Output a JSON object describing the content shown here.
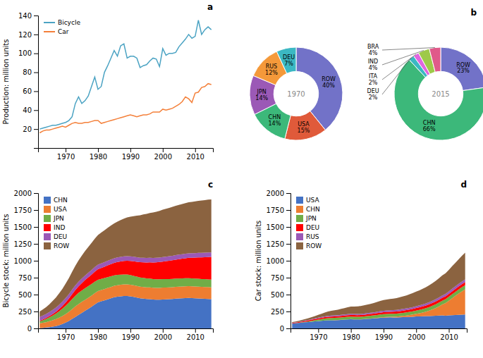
{
  "chart_data": [
    {
      "type": "line",
      "title": "a",
      "y_label": "Production: million units",
      "x": [
        1962,
        1963,
        1964,
        1965,
        1966,
        1967,
        1968,
        1969,
        1970,
        1971,
        1972,
        1973,
        1974,
        1975,
        1976,
        1977,
        1978,
        1979,
        1980,
        1981,
        1982,
        1983,
        1984,
        1985,
        1986,
        1987,
        1988,
        1989,
        1990,
        1991,
        1992,
        1993,
        1994,
        1995,
        1996,
        1997,
        1998,
        1999,
        2000,
        2001,
        2002,
        2003,
        2004,
        2005,
        2006,
        2007,
        2008,
        2009,
        2010,
        2011,
        2012,
        2013,
        2014,
        2015
      ],
      "series": [
        {
          "name": "Bicycle",
          "color": "#4BA3C3",
          "values": [
            20,
            21,
            22,
            23,
            24,
            24,
            25,
            26,
            27,
            29,
            33,
            47,
            54,
            47,
            50,
            55,
            65,
            75,
            62,
            65,
            80,
            87,
            95,
            103,
            97,
            108,
            110,
            95,
            97,
            97,
            95,
            85,
            87,
            88,
            92,
            95,
            94,
            86,
            105,
            98,
            100,
            100,
            101,
            107,
            111,
            115,
            120,
            116,
            118,
            135,
            120,
            125,
            128,
            125
          ]
        },
        {
          "name": "Car",
          "color": "#F4803A",
          "values": [
            16,
            18,
            19,
            19,
            20,
            21,
            22,
            23,
            22,
            24,
            26,
            27,
            26,
            26,
            27,
            27,
            28,
            29,
            29,
            26,
            27,
            28,
            29,
            30,
            31,
            32,
            33,
            34,
            35,
            34,
            33,
            34,
            35,
            35,
            36,
            38,
            38,
            38,
            41,
            40,
            41,
            42,
            44,
            46,
            49,
            54,
            52,
            48,
            58,
            59,
            64,
            65,
            68,
            67
          ]
        }
      ],
      "xlim": [
        1961.5,
        2015.5
      ],
      "xticks": [
        1970,
        1980,
        1990,
        2000,
        2010
      ],
      "ylim": [
        0,
        140
      ],
      "yticks": [
        20,
        40,
        60,
        80,
        100,
        120,
        140
      ],
      "legend": "upper left"
    },
    {
      "type": "pie",
      "title": "b",
      "data_labels": true,
      "series": [
        {
          "name": "1970",
          "values": [
            40,
            15,
            14,
            14,
            12,
            7
          ],
          "colors": [
            "#7272C8",
            "#E05A3A",
            "#3CB87A",
            "#9B59B6",
            "#F4993A",
            "#3BB8C3"
          ],
          "value_labels": [
            "ROW\n40%",
            "USA\n15%",
            "CHN\n14%",
            "JPN\n14%",
            "RUS\n12%",
            "DEU\n7%"
          ]
        },
        {
          "name": "2015",
          "values": [
            23,
            66,
            2,
            2,
            4,
            4
          ],
          "colors": [
            "#7272C8",
            "#3CB87A",
            "#3BB8C3",
            "#E066E0",
            "#9EC94A",
            "#E05A8A"
          ],
          "value_labels": [
            "ROW\n23%",
            "CHN\n66%",
            "DEU\n2%",
            "ITA\n2%",
            "IND\n4%",
            "BRA\n4%"
          ]
        }
      ]
    },
    {
      "type": "area",
      "stacked": true,
      "title": "c",
      "y_label": "Bicycle stock: million units",
      "x": [
        1962,
        1963,
        1964,
        1965,
        1966,
        1967,
        1968,
        1969,
        1970,
        1971,
        1972,
        1973,
        1974,
        1975,
        1976,
        1977,
        1978,
        1979,
        1980,
        1981,
        1982,
        1983,
        1984,
        1985,
        1986,
        1987,
        1988,
        1989,
        1990,
        1991,
        1992,
        1993,
        1994,
        1995,
        1996,
        1997,
        1998,
        1999,
        2000,
        2001,
        2002,
        2003,
        2004,
        2005,
        2006,
        2007,
        2008,
        2009,
        2010,
        2011,
        2012,
        2013,
        2014,
        2015
      ],
      "series": [
        {
          "name": "CHN",
          "color": "#4472C4",
          "values": [
            5,
            8,
            12,
            18,
            25,
            35,
            48,
            65,
            85,
            110,
            140,
            170,
            200,
            230,
            260,
            290,
            320,
            355,
            385,
            400,
            415,
            430,
            445,
            460,
            470,
            475,
            480,
            480,
            475,
            465,
            455,
            445,
            440,
            435,
            432,
            428,
            425,
            425,
            428,
            430,
            432,
            435,
            440,
            443,
            446,
            448,
            450,
            448,
            445,
            443,
            440,
            438,
            436,
            433
          ]
        },
        {
          "name": "USA",
          "color": "#ED7D31",
          "values": [
            70,
            75,
            80,
            88,
            95,
            102,
            110,
            118,
            127,
            135,
            145,
            155,
            160,
            162,
            163,
            164,
            165,
            166,
            167,
            167,
            167,
            168,
            168,
            169,
            169,
            170,
            170,
            171,
            171,
            172,
            172,
            172,
            173,
            173,
            174,
            174,
            174,
            175,
            175,
            175,
            175,
            175,
            175,
            175,
            175,
            175,
            175,
            175,
            175,
            175,
            175,
            175,
            175,
            175
          ]
        },
        {
          "name": "JPN",
          "color": "#70AD47",
          "values": [
            30,
            38,
            48,
            58,
            70,
            82,
            95,
            108,
            122,
            135,
            148,
            158,
            165,
            168,
            170,
            170,
            170,
            170,
            168,
            165,
            162,
            160,
            158,
            155,
            153,
            150,
            148,
            145,
            142,
            140,
            138,
            136,
            134,
            132,
            130,
            128,
            127,
            126,
            125,
            124,
            123,
            122,
            121,
            120,
            119,
            118,
            118,
            117,
            116,
            116,
            115,
            115,
            114,
            113
          ]
        },
        {
          "name": "IND",
          "color": "#FF0000",
          "values": [
            10,
            12,
            15,
            18,
            22,
            27,
            33,
            40,
            50,
            60,
            72,
            85,
            98,
            110,
            122,
            132,
            140,
            148,
            155,
            162,
            168,
            174,
            180,
            185,
            190,
            195,
            200,
            205,
            210,
            215,
            220,
            225,
            230,
            235,
            240,
            245,
            250,
            255,
            260,
            265,
            270,
            275,
            280,
            285,
            290,
            295,
            300,
            305,
            310,
            315,
            320,
            325,
            330,
            335
          ]
        },
        {
          "name": "DEU",
          "color": "#9B59B6",
          "values": [
            55,
            57,
            58,
            60,
            61,
            62,
            63,
            64,
            65,
            66,
            67,
            67,
            67,
            67,
            67,
            67,
            67,
            67,
            67,
            67,
            67,
            67,
            67,
            67,
            67,
            67,
            67,
            67,
            67,
            67,
            67,
            67,
            67,
            67,
            67,
            67,
            67,
            67,
            67,
            67,
            67,
            67,
            67,
            67,
            67,
            67,
            67,
            67,
            67,
            67,
            67,
            67,
            67,
            67
          ]
        },
        {
          "name": "ROW",
          "color": "#8B6340",
          "values": [
            80,
            90,
            102,
            116,
            132,
            149,
            168,
            189,
            212,
            237,
            264,
            290,
            315,
            338,
            360,
            380,
            400,
            420,
            438,
            456,
            472,
            488,
            502,
            516,
            530,
            544,
            558,
            572,
            586,
            600,
            614,
            628,
            640,
            652,
            663,
            672,
            681,
            690,
            699,
            707,
            715,
            722,
            729,
            736,
            742,
            748,
            754,
            759,
            764,
            769,
            773,
            777,
            781,
            784
          ]
        }
      ],
      "xlim": [
        1961.5,
        2015.5
      ],
      "xticks": [
        1970,
        1980,
        1990,
        2000,
        2010
      ],
      "ylim": [
        0,
        2000
      ],
      "yticks": [
        0,
        250,
        500,
        750,
        1000,
        1250,
        1500,
        1750,
        2000
      ],
      "legend": "upper left"
    },
    {
      "type": "area",
      "stacked": true,
      "title": "d",
      "y_label": "Car stock: million units",
      "x": [
        1962,
        1963,
        1964,
        1965,
        1966,
        1967,
        1968,
        1969,
        1970,
        1971,
        1972,
        1973,
        1974,
        1975,
        1976,
        1977,
        1978,
        1979,
        1980,
        1981,
        1982,
        1983,
        1984,
        1985,
        1986,
        1987,
        1988,
        1989,
        1990,
        1991,
        1992,
        1993,
        1994,
        1995,
        1996,
        1997,
        1998,
        1999,
        2000,
        2001,
        2002,
        2003,
        2004,
        2005,
        2006,
        2007,
        2008,
        2009,
        2010,
        2011,
        2012,
        2013,
        2014,
        2015
      ],
      "series": [
        {
          "name": "USA",
          "color": "#4472C4",
          "values": [
            72,
            76,
            80,
            85,
            90,
            95,
            100,
            105,
            108,
            112,
            117,
            120,
            120,
            121,
            123,
            126,
            130,
            133,
            135,
            133,
            132,
            133,
            135,
            140,
            144,
            148,
            152,
            156,
            160,
            162,
            163,
            162,
            162,
            163,
            166,
            168,
            170,
            173,
            177,
            178,
            180,
            181,
            183,
            186,
            188,
            191,
            193,
            188,
            192,
            195,
            197,
            200,
            203,
            206
          ]
        },
        {
          "name": "CHN",
          "color": "#ED7D31",
          "values": [
            0,
            0,
            0,
            0,
            0,
            0,
            0,
            0,
            1,
            1,
            1,
            1,
            1,
            1,
            1,
            1,
            1,
            1,
            2,
            2,
            2,
            2,
            2,
            3,
            3,
            4,
            5,
            6,
            7,
            8,
            9,
            11,
            13,
            16,
            19,
            23,
            27,
            32,
            38,
            46,
            55,
            67,
            80,
            96,
            114,
            135,
            160,
            188,
            218,
            251,
            284,
            315,
            345,
            372
          ]
        },
        {
          "name": "JPN",
          "color": "#70AD47",
          "values": [
            1,
            2,
            3,
            5,
            7,
            10,
            13,
            17,
            21,
            25,
            28,
            31,
            33,
            33,
            34,
            35,
            36,
            37,
            38,
            38,
            38,
            38,
            39,
            40,
            40,
            41,
            42,
            43,
            44,
            44,
            44,
            44,
            44,
            45,
            45,
            46,
            47,
            48,
            49,
            50,
            51,
            52,
            53,
            54,
            55,
            56,
            57,
            57,
            58,
            59,
            59,
            60,
            61,
            61
          ]
        },
        {
          "name": "DEU",
          "color": "#FF0000",
          "values": [
            8,
            9,
            10,
            11,
            13,
            14,
            16,
            17,
            18,
            19,
            20,
            21,
            21,
            22,
            22,
            23,
            23,
            24,
            24,
            24,
            24,
            24,
            25,
            25,
            26,
            26,
            27,
            28,
            29,
            29,
            30,
            30,
            31,
            32,
            33,
            34,
            35,
            36,
            37,
            38,
            39,
            39,
            40,
            41,
            41,
            42,
            42,
            42,
            43,
            43,
            44,
            44,
            45,
            45
          ]
        },
        {
          "name": "RUS",
          "color": "#9B59B6",
          "values": [
            2,
            3,
            4,
            5,
            6,
            7,
            8,
            9,
            10,
            11,
            12,
            13,
            14,
            15,
            15,
            16,
            16,
            17,
            17,
            17,
            17,
            17,
            18,
            18,
            19,
            19,
            20,
            21,
            21,
            22,
            22,
            23,
            23,
            24,
            25,
            25,
            26,
            27,
            27,
            28,
            29,
            30,
            31,
            32,
            33,
            34,
            35,
            36,
            36,
            37,
            38,
            39,
            40,
            41
          ]
        },
        {
          "name": "ROW",
          "color": "#8B6340",
          "values": [
            10,
            12,
            15,
            18,
            22,
            26,
            30,
            35,
            42,
            49,
            57,
            65,
            71,
            76,
            82,
            88,
            94,
            100,
            107,
            110,
            113,
            117,
            121,
            126,
            131,
            137,
            144,
            151,
            158,
            163,
            167,
            171,
            175,
            180,
            186,
            192,
            199,
            207,
            215,
            222,
            231,
            240,
            250,
            261,
            272,
            284,
            297,
            305,
            318,
            333,
            348,
            363,
            378,
            394
          ]
        }
      ],
      "xlim": [
        1961.5,
        2015.5
      ],
      "xticks": [
        1970,
        1980,
        1990,
        2000,
        2010
      ],
      "ylim": [
        0,
        2000
      ],
      "yticks": [
        0,
        250,
        500,
        750,
        1000,
        1250,
        1500,
        1750,
        2000
      ],
      "legend": "upper left"
    }
  ]
}
